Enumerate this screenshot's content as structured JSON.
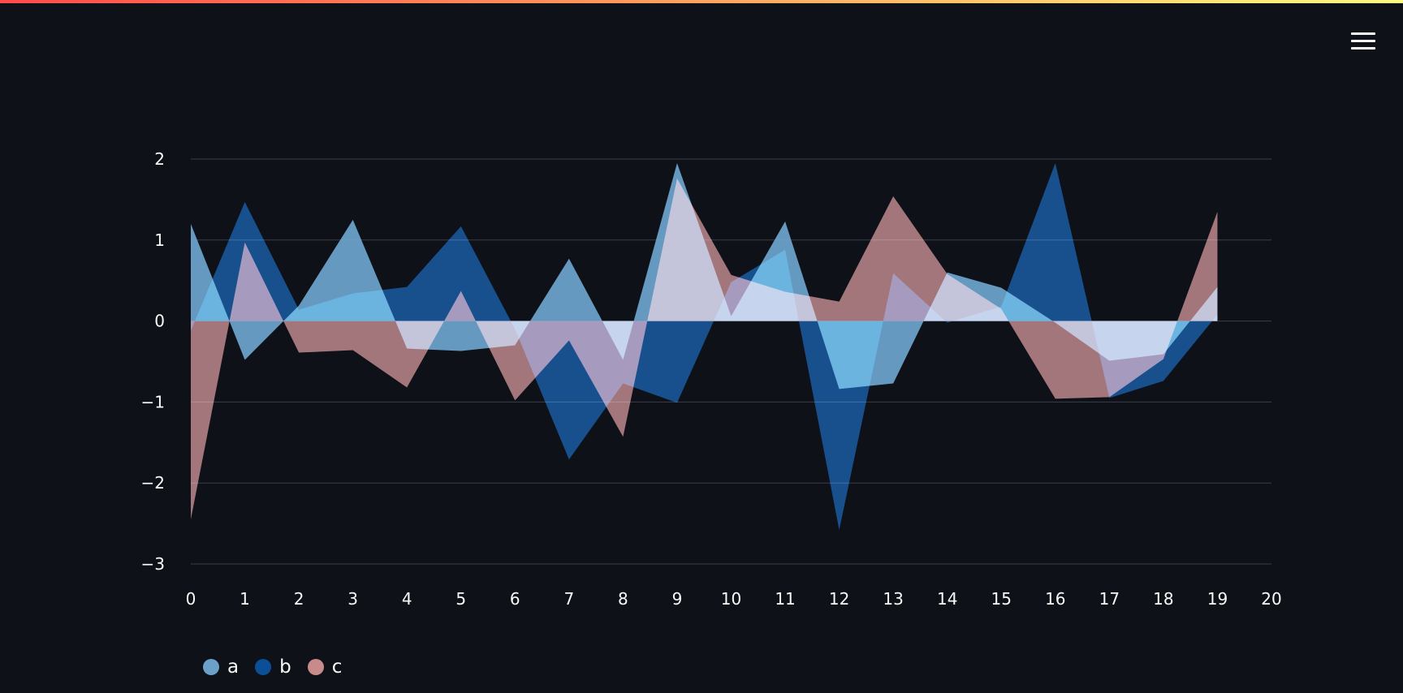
{
  "app": {
    "menu_icon": "hamburger-menu-icon"
  },
  "colors": {
    "background": "#0e1117",
    "grid": "#3a3e48",
    "text": "#fafafa",
    "a": "#6ba1c9",
    "b": "#0b4f99",
    "c": "#c98a8c",
    "overlap_ab": "#2277cf",
    "overlap_ac": "#d6a6b4",
    "overlap_bc": "#a8a2c4"
  },
  "chart_data": {
    "type": "area",
    "title": "",
    "xlabel": "",
    "ylabel": "",
    "x": [
      0,
      1,
      2,
      3,
      4,
      5,
      6,
      7,
      8,
      9,
      10,
      11,
      12,
      13,
      14,
      15,
      16,
      17,
      18,
      19
    ],
    "xlim": [
      0,
      20
    ],
    "ylim": [
      -3.0,
      2.0
    ],
    "xticks": [
      0,
      1,
      2,
      3,
      4,
      5,
      6,
      7,
      8,
      9,
      10,
      11,
      12,
      13,
      14,
      15,
      16,
      17,
      18,
      19,
      20
    ],
    "yticks": [
      2,
      1,
      0,
      -1,
      -2,
      -3
    ],
    "ytick_labels": [
      "2",
      "1",
      "0",
      "−1",
      "−2",
      "−3"
    ],
    "grid": "horizontal",
    "legend_position": "bottom-left",
    "series": [
      {
        "name": "a",
        "values": [
          1.2,
          -0.48,
          0.19,
          1.25,
          -0.34,
          -0.37,
          -0.3,
          0.77,
          -0.48,
          1.95,
          0.06,
          1.23,
          -0.84,
          -0.77,
          0.6,
          0.41,
          -0.02,
          -0.49,
          -0.41,
          0.42
        ]
      },
      {
        "name": "b",
        "values": [
          -0.12,
          1.47,
          0.14,
          0.34,
          0.42,
          1.17,
          -0.1,
          -1.71,
          -0.77,
          -1.01,
          0.48,
          0.88,
          -2.58,
          0.59,
          -0.02,
          0.18,
          1.95,
          -0.95,
          -0.74,
          0.08
        ]
      },
      {
        "name": "c",
        "values": [
          -2.45,
          0.97,
          -0.39,
          -0.36,
          -0.82,
          0.37,
          -0.98,
          -0.24,
          -1.43,
          1.76,
          0.57,
          0.36,
          0.24,
          1.54,
          0.58,
          0.15,
          -0.96,
          -0.94,
          -0.47,
          1.35
        ]
      }
    ]
  }
}
